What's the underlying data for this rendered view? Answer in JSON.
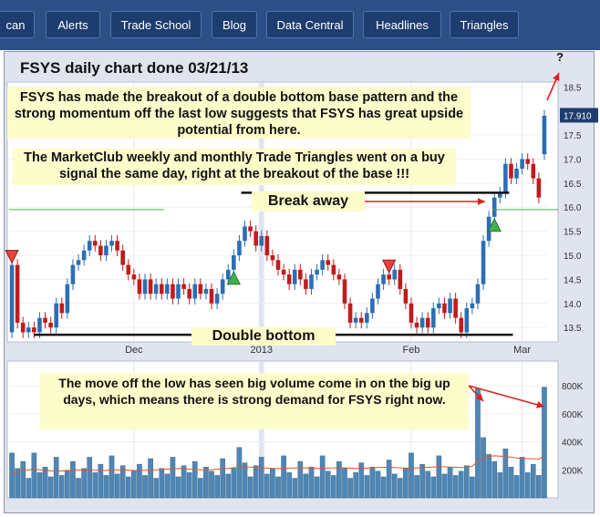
{
  "nav": {
    "items": [
      "can",
      "Alerts",
      "Trade School",
      "Blog",
      "Data Central",
      "Headlines",
      "Triangles"
    ]
  },
  "chart_title": "FSYS daily chart done 03/21/13",
  "question_mark": "?",
  "annotations": {
    "note_top": "FSYS has made the breakout of a double bottom base pattern and the strong momentum off the last low suggests that FSYS has great upside potential from here.",
    "note_triangles": "The MarketClub weekly and monthly Trade Triangles went on a buy signal the same day, right at the breakout of the base !!!",
    "break_away": "Break away",
    "double_bottom": "Double bottom",
    "note_volume": "The move off the low has seen big volume come in on the big up days, which means there is strong demand for FSYS right now."
  },
  "colors": {
    "up": "#2c6eb4",
    "down": "#c21b1b",
    "volume": "#4f86b4",
    "arrow": "#e0201c",
    "note_bg": "#fdfccb"
  },
  "chart_data": [
    {
      "type": "candlestick",
      "title": "FSYS daily chart done 03/21/13",
      "x_tick_labels": [
        "Dec",
        "2013",
        "Feb",
        "Mar"
      ],
      "y_ticks": [
        13.5,
        14.0,
        14.5,
        15.0,
        15.5,
        16.0,
        16.5,
        17.0,
        17.5,
        18.5
      ],
      "ylim": [
        13.2,
        18.6
      ],
      "last_price_label": "17.910",
      "last_price": 17.91,
      "candles": [
        [
          13.4,
          14.8
        ],
        [
          14.8,
          13.6
        ],
        [
          13.6,
          13.4
        ],
        [
          13.4,
          13.5
        ],
        [
          13.5,
          13.4
        ],
        [
          13.4,
          13.7
        ],
        [
          13.7,
          13.6
        ],
        [
          13.6,
          13.5
        ],
        [
          13.5,
          14.0
        ],
        [
          14.0,
          13.8
        ],
        [
          13.8,
          14.4
        ],
        [
          14.4,
          14.8
        ],
        [
          14.8,
          14.9
        ],
        [
          14.9,
          15.1
        ],
        [
          15.1,
          15.3
        ],
        [
          15.3,
          15.2
        ],
        [
          15.2,
          15.0
        ],
        [
          15.0,
          15.2
        ],
        [
          15.2,
          15.3
        ],
        [
          15.3,
          15.1
        ],
        [
          15.1,
          14.8
        ],
        [
          14.8,
          14.6
        ],
        [
          14.6,
          14.5
        ],
        [
          14.5,
          14.2
        ],
        [
          14.2,
          14.5
        ],
        [
          14.5,
          14.2
        ],
        [
          14.2,
          14.4
        ],
        [
          14.4,
          14.2
        ],
        [
          14.2,
          14.4
        ],
        [
          14.4,
          14.1
        ],
        [
          14.1,
          14.4
        ],
        [
          14.4,
          14.3
        ],
        [
          14.3,
          14.1
        ],
        [
          14.1,
          14.4
        ],
        [
          14.4,
          14.2
        ],
        [
          14.2,
          14.3
        ],
        [
          14.3,
          14.0
        ],
        [
          14.0,
          14.2
        ],
        [
          14.2,
          14.5
        ],
        [
          14.5,
          14.7
        ],
        [
          14.7,
          15.0
        ],
        [
          15.0,
          15.3
        ],
        [
          15.3,
          15.6
        ],
        [
          15.6,
          15.5
        ],
        [
          15.5,
          15.2
        ],
        [
          15.2,
          15.4
        ],
        [
          15.4,
          15.0
        ],
        [
          15.0,
          14.9
        ],
        [
          14.9,
          14.7
        ],
        [
          14.7,
          14.6
        ],
        [
          14.6,
          14.4
        ],
        [
          14.4,
          14.7
        ],
        [
          14.7,
          14.5
        ],
        [
          14.5,
          14.3
        ],
        [
          14.3,
          14.6
        ],
        [
          14.6,
          14.7
        ],
        [
          14.7,
          14.9
        ],
        [
          14.9,
          14.8
        ],
        [
          14.8,
          14.6
        ],
        [
          14.6,
          14.5
        ],
        [
          14.5,
          14.0
        ],
        [
          14.0,
          13.6
        ],
        [
          13.6,
          13.7
        ],
        [
          13.7,
          13.6
        ],
        [
          13.6,
          13.8
        ],
        [
          13.8,
          14.1
        ],
        [
          14.1,
          14.4
        ],
        [
          14.4,
          14.6
        ],
        [
          14.6,
          14.5
        ],
        [
          14.5,
          14.7
        ],
        [
          14.7,
          14.3
        ],
        [
          14.3,
          14.0
        ],
        [
          14.0,
          13.6
        ],
        [
          13.6,
          13.5
        ],
        [
          13.5,
          13.7
        ],
        [
          13.7,
          13.5
        ],
        [
          13.5,
          13.9
        ],
        [
          13.9,
          14.0
        ],
        [
          14.0,
          13.8
        ],
        [
          13.8,
          14.1
        ],
        [
          14.1,
          13.7
        ],
        [
          13.7,
          13.4
        ],
        [
          13.4,
          13.9
        ],
        [
          13.9,
          14.0
        ],
        [
          14.0,
          14.4
        ],
        [
          14.4,
          15.3
        ],
        [
          15.3,
          15.8
        ],
        [
          15.8,
          16.2
        ],
        [
          16.2,
          16.3
        ],
        [
          16.3,
          16.9
        ],
        [
          16.9,
          16.6
        ],
        [
          16.6,
          16.8
        ],
        [
          16.8,
          17.0
        ],
        [
          17.0,
          16.9
        ],
        [
          16.9,
          16.6
        ],
        [
          16.6,
          16.2
        ],
        [
          17.1,
          17.9
        ]
      ],
      "resistance_level": 16.3,
      "support_level": 13.35,
      "trade_triangles": [
        {
          "type": "sell",
          "index": 0
        },
        {
          "type": "sell",
          "index": 68
        },
        {
          "type": "buy",
          "index": 40
        },
        {
          "type": "buy",
          "index": 87
        }
      ]
    },
    {
      "type": "bar",
      "title": "",
      "series_name": "Volume",
      "y_tick_labels": [
        "800K",
        "600K",
        "400K",
        "200K"
      ],
      "y_ticks": [
        800000,
        600000,
        400000,
        200000
      ],
      "ylim": [
        0,
        950000
      ],
      "values": [
        320000,
        210000,
        260000,
        140000,
        320000,
        180000,
        220000,
        150000,
        290000,
        160000,
        190000,
        260000,
        140000,
        210000,
        290000,
        180000,
        240000,
        160000,
        300000,
        170000,
        230000,
        150000,
        190000,
        240000,
        160000,
        280000,
        140000,
        210000,
        170000,
        290000,
        150000,
        230000,
        180000,
        260000,
        140000,
        220000,
        190000,
        160000,
        280000,
        170000,
        210000,
        360000,
        250000,
        150000,
        230000,
        290000,
        170000,
        210000,
        150000,
        300000,
        180000,
        140000,
        260000,
        170000,
        220000,
        150000,
        300000,
        190000,
        160000,
        260000,
        210000,
        140000,
        180000,
        250000,
        160000,
        220000,
        190000,
        150000,
        270000,
        170000,
        140000,
        210000,
        320000,
        160000,
        240000,
        190000,
        150000,
        300000,
        170000,
        220000,
        160000,
        190000,
        230000,
        150000,
        780000,
        430000,
        310000,
        260000,
        180000,
        350000,
        220000,
        160000,
        290000,
        180000,
        240000,
        160000,
        790000
      ],
      "moving_average": [
        170000,
        185000,
        195000,
        200000,
        205000,
        200000,
        195000,
        192000,
        190000,
        192000,
        195000,
        198000,
        200000,
        200000,
        198000,
        196000,
        195000,
        196000,
        198000,
        200000,
        200000,
        198000,
        196000,
        195000,
        196000,
        198000,
        200000,
        202000,
        205000,
        208000,
        210000,
        208000,
        205000,
        202000,
        200000,
        200000,
        202000,
        205000,
        208000,
        210000,
        215000,
        220000,
        222000,
        220000,
        218000,
        215000,
        212000,
        210000,
        210000,
        210000,
        212000,
        214000,
        215000,
        214000,
        212000,
        210000,
        210000,
        212000,
        214000,
        215000,
        214000,
        212000,
        210000,
        210000,
        212000,
        214000,
        216000,
        218000,
        218000,
        216000,
        214000,
        212000,
        212000,
        214000,
        216000,
        218000,
        220000,
        222000,
        222000,
        220000,
        218000,
        216000,
        218000,
        225000,
        260000,
        285000,
        295000,
        300000,
        298000,
        295000,
        290000,
        285000,
        282000,
        280000,
        278000,
        276000,
        300000
      ]
    }
  ]
}
